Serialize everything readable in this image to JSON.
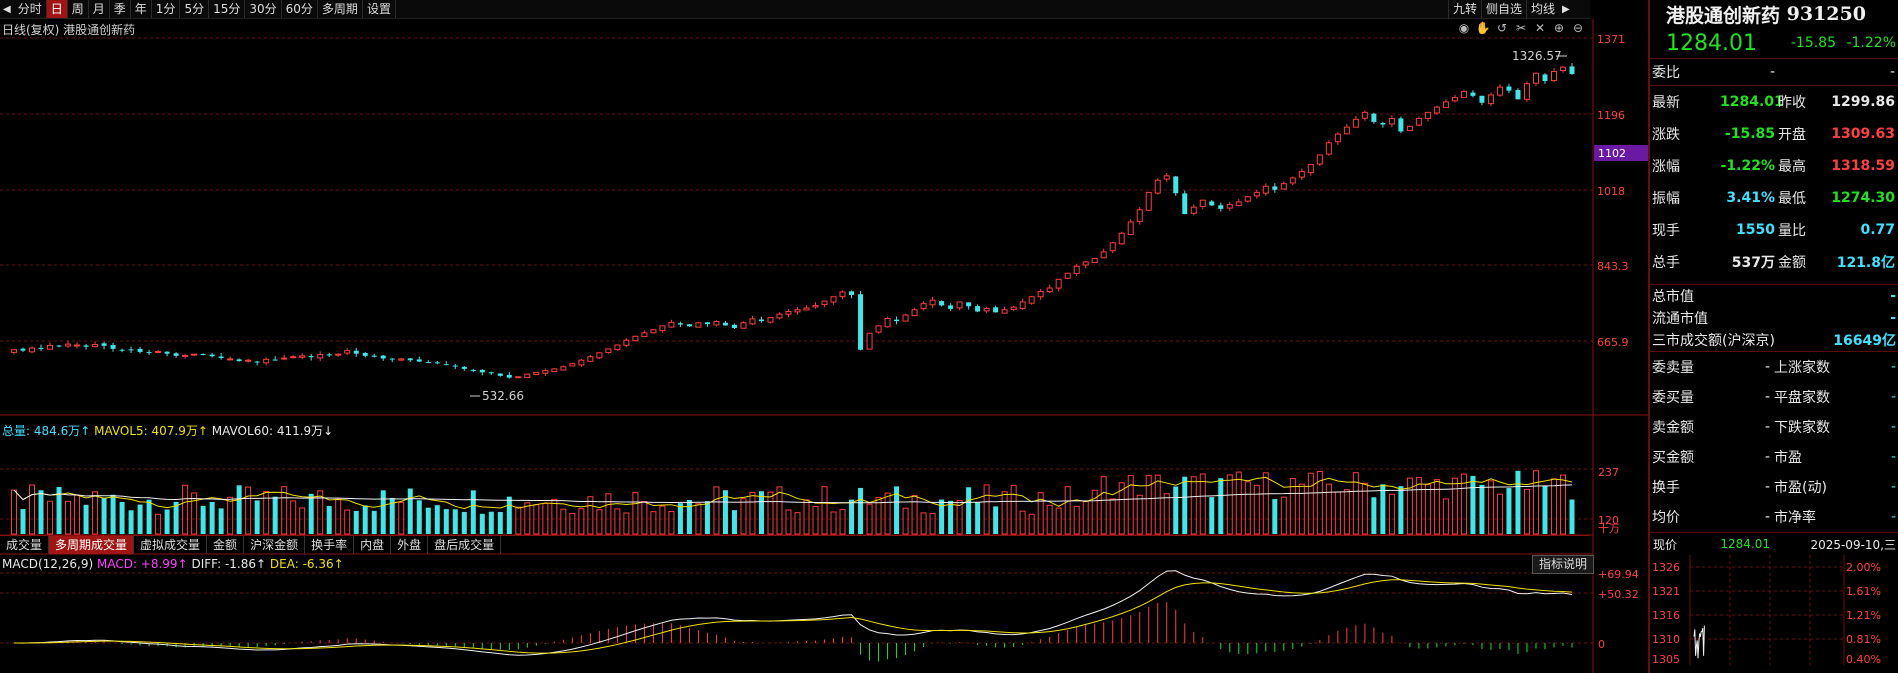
{
  "toolbar": {
    "periods": [
      "分时",
      "日",
      "周",
      "月",
      "季",
      "年",
      "1分",
      "5分",
      "15分",
      "30分",
      "60分",
      "多周期",
      "设置"
    ],
    "active_period": "日",
    "right_items": [
      "九转",
      "侧自选",
      "均线"
    ]
  },
  "chart": {
    "label": "日线(复权)  港股通创新药",
    "high_label": "1326.57",
    "low_label": "532.66",
    "price_axis": [
      "1371",
      "1196",
      "1018",
      "843.3",
      "665.9"
    ],
    "crosshair_price": "1102"
  },
  "volume": {
    "legend_total": "总量: 484.6万↑",
    "legend_ma5": "MAVOL5: 407.9万↑",
    "legend_ma60": "MAVOL60: 411.9万↓",
    "axis": [
      "237",
      "120",
      "十万"
    ]
  },
  "tabs": {
    "items": [
      "成交量",
      "多周期成交量",
      "虚拟成交量",
      "金额",
      "沪深金额",
      "换手率",
      "内盘",
      "外盘",
      "盘后成交量"
    ],
    "active": "多周期成交量"
  },
  "macd": {
    "legend_name": "MACD(12,26,9)",
    "legend_macd": "MACD: +8.99↑",
    "legend_diff": "DIFF: -1.86↑",
    "legend_dea": "DEA: -6.36↑",
    "axis": [
      "+69.94",
      "+50.32",
      "0"
    ],
    "indicator_button": "指标说明"
  },
  "quote": {
    "name": "港股通创新药",
    "code": "931250",
    "price": "1284.01",
    "change": "-15.85",
    "change_pct": "-1.22%",
    "weibi_label": "委比",
    "weibi_value1": "-",
    "weibi_value2": "-",
    "rows": [
      {
        "k1": "最新",
        "v1": "1284.01",
        "c1": "grn",
        "k2": "昨收",
        "v2": "1299.86",
        "c2": "wht"
      },
      {
        "k1": "涨跌",
        "v1": "-15.85",
        "c1": "grn",
        "k2": "开盘",
        "v2": "1309.63",
        "c2": "red"
      },
      {
        "k1": "涨幅",
        "v1": "-1.22%",
        "c1": "grn",
        "k2": "最高",
        "v2": "1318.59",
        "c2": "red"
      },
      {
        "k1": "振幅",
        "v1": "3.41%",
        "c1": "cyan",
        "k2": "最低",
        "v2": "1274.30",
        "c2": "grn"
      },
      {
        "k1": "现手",
        "v1": "1550",
        "c1": "cyan",
        "k2": "量比",
        "v2": "0.77",
        "c2": "cyan"
      },
      {
        "k1": "总手",
        "v1": "537万",
        "c1": "wht",
        "k2": "金额",
        "v2": "121.8亿",
        "c2": "cyan"
      }
    ],
    "wide_rows": [
      {
        "k": "总市值",
        "v": "-"
      },
      {
        "k": "流通市值",
        "v": "-"
      },
      {
        "k": "三市成交额(沪深京)",
        "v": "16649亿"
      }
    ],
    "pair_rows": [
      {
        "k1": "委卖量",
        "v1": "-",
        "k2": "上涨家数",
        "v2": "-"
      },
      {
        "k1": "委买量",
        "v1": "-",
        "k2": "平盘家数",
        "v2": "-"
      },
      {
        "k1": "卖金额",
        "v1": "-",
        "k2": "下跌家数",
        "v2": "-"
      },
      {
        "k1": "买金额",
        "v1": "-",
        "k2": "市盈",
        "v2": "-"
      },
      {
        "k1": "换手",
        "v1": "-",
        "k2": "市盈(动)",
        "v2": "-"
      },
      {
        "k1": "均价",
        "v1": "-",
        "k2": "市净率",
        "v2": "-"
      }
    ],
    "mini": {
      "label": "现价",
      "price": "1284.01",
      "date": "2025-09-10,三",
      "left_axis": [
        "1326",
        "1321",
        "1316",
        "1310",
        "1305"
      ],
      "right_axis": [
        "2.00%",
        "1.61%",
        "1.21%",
        "0.81%",
        "0.40%"
      ]
    }
  },
  "chart_data": {
    "type": "candlestick",
    "title": "日线(复权)  港股通创新药",
    "ylim": [
      500,
      1390
    ],
    "close": [
      650,
      648,
      654,
      652,
      660,
      658,
      663,
      661,
      657,
      662,
      659,
      652,
      648,
      650,
      645,
      643,
      646,
      641,
      636,
      637,
      640,
      638,
      635,
      631,
      629,
      624,
      626,
      622,
      628,
      627,
      631,
      634,
      636,
      633,
      639,
      637,
      640,
      648,
      641,
      636,
      634,
      630,
      628,
      629,
      626,
      623,
      621,
      619,
      616,
      612,
      606,
      602,
      598,
      596,
      590,
      586,
      588,
      594,
      598,
      602,
      606,
      611,
      618,
      626,
      634,
      643,
      652,
      661,
      672,
      681,
      689,
      696,
      705,
      713,
      708,
      704,
      712,
      709,
      715,
      706,
      700,
      712,
      721,
      716,
      724,
      732,
      738,
      742,
      746,
      752,
      762,
      772,
      783,
      776,
      650,
      688,
      705,
      722,
      716,
      730,
      742,
      756,
      764,
      752,
      744,
      760,
      750,
      738,
      745,
      736,
      742,
      748,
      760,
      772,
      784,
      792,
      812,
      826,
      842,
      852,
      860,
      875,
      896,
      918,
      944,
      972,
      1012,
      1040,
      1050,
      1010,
      962,
      978,
      994,
      982,
      974,
      984,
      990,
      1002,
      1012,
      1026,
      1018,
      1032,
      1045,
      1060,
      1076,
      1098,
      1126,
      1146,
      1162,
      1180,
      1196,
      1174,
      1168,
      1182,
      1152,
      1164,
      1182,
      1196,
      1208,
      1220,
      1230,
      1244,
      1234,
      1218,
      1236,
      1254,
      1246,
      1226,
      1262,
      1286,
      1268,
      1290,
      1299.86,
      1284.01
    ]
  }
}
